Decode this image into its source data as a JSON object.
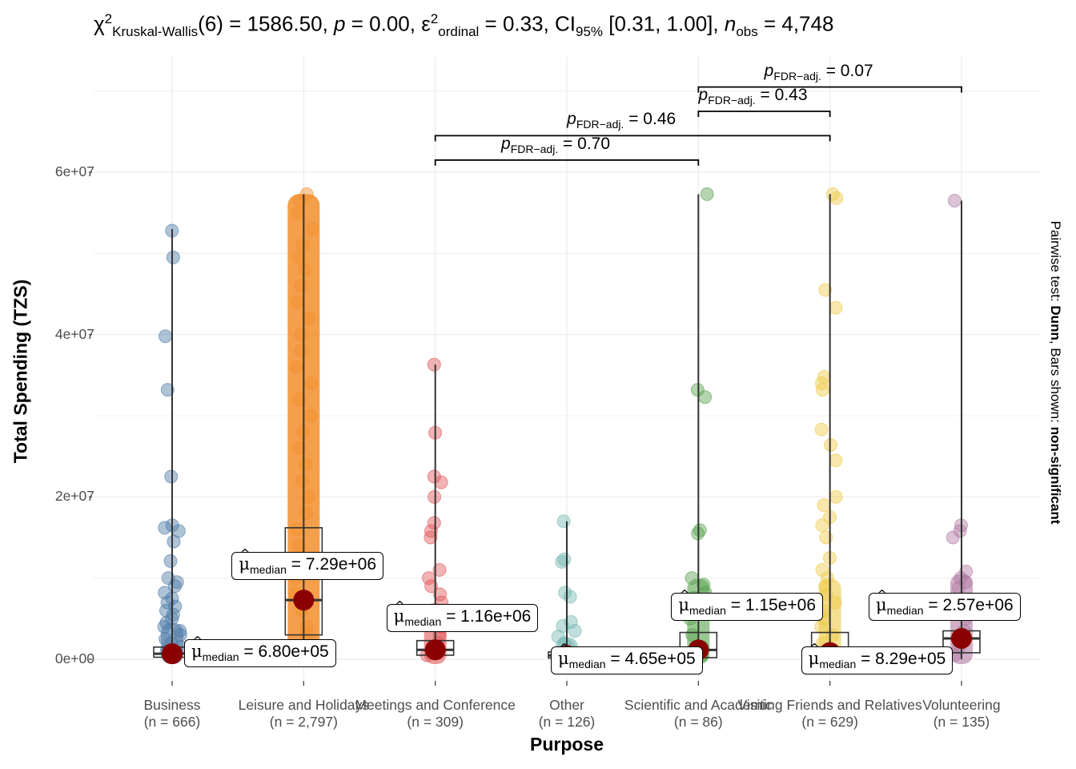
{
  "chart_data": {
    "type": "box-violin-scatter",
    "title": {
      "statistic_symbol": "χ",
      "statistic_sup": "2",
      "statistic_sub": "Kruskal-Wallis",
      "df": "(6)",
      "statistic_value": "1586.50",
      "p_symbol": "p",
      "p_value": "0.00",
      "effsize_symbol": "ε",
      "effsize_sup": "2",
      "effsize_sub": "ordinal",
      "effsize_value": "0.33",
      "ci_symbol": "CI",
      "ci_sub": "95%",
      "ci_value": "[0.31, 1.00]",
      "n_symbol": "n",
      "n_sub": "obs",
      "n_value": "4,748"
    },
    "xlabel": "Purpose",
    "ylabel": "Total Spending (TZS)",
    "caption": {
      "prefix": "Pairwise test: ",
      "test": "Dunn",
      "mid": ", Bars shown: ",
      "shown": "non-significant"
    },
    "ylim": [
      -1000000,
      71000000
    ],
    "yticks": [
      {
        "value": 0,
        "label": "0e+00"
      },
      {
        "value": 20000000,
        "label": "2e+07"
      },
      {
        "value": 40000000,
        "label": "4e+07"
      },
      {
        "value": 60000000,
        "label": "6e+07"
      }
    ],
    "grid": true,
    "categories": [
      {
        "name": "Business",
        "n_label": "(n = 666)",
        "color": "#4e79a7",
        "median": 680000,
        "median_label": "6.80e+05",
        "q1": 250000,
        "q3": 1500000,
        "whisker_max": 53000000,
        "points": [
          52800000,
          49500000,
          39800000,
          33200000,
          22500000,
          16500000,
          16200000,
          15800000,
          14500000,
          12100000,
          10000000,
          9500000,
          9000000,
          8200000,
          7500000,
          7000000,
          6500000,
          6000000,
          5500000,
          5000000,
          4500000,
          4000000,
          3500000,
          3000000,
          2500000,
          2000000,
          1500000,
          1000000,
          700000,
          400000
        ]
      },
      {
        "name": "Leisure and Holidays",
        "n_label": "(n = 2,797)",
        "color": "#f28e2b",
        "median": 7290000,
        "median_label": "7.29e+06",
        "q1": 3000000,
        "q3": 16200000,
        "whisker_max": 57300000,
        "points": [
          57300000,
          56500000,
          55000000,
          53000000,
          51000000,
          49500000,
          48000000,
          46000000,
          44000000,
          42000000,
          40000000,
          38000000,
          36000000,
          34000000,
          32000000,
          30000000,
          28000000,
          26000000,
          24000000,
          22000000,
          20000000,
          18000000,
          16000000,
          14000000,
          12000000,
          10000000,
          8000000,
          6000000,
          4000000,
          3000000,
          2000000,
          1000000
        ]
      },
      {
        "name": "Meetings and Conference",
        "n_label": "(n = 309)",
        "color": "#e15759",
        "median": 1160000,
        "median_label": "1.16e+06",
        "q1": 500000,
        "q3": 2300000,
        "whisker_max": 36300000,
        "points": [
          36300000,
          27900000,
          22500000,
          21800000,
          20000000,
          16800000,
          15800000,
          15000000,
          11000000,
          10000000,
          9000000,
          8000000,
          7000000,
          6000000,
          5000000,
          4000000,
          3000000,
          2000000,
          1000000,
          500000
        ]
      },
      {
        "name": "Other",
        "n_label": "(n = 126)",
        "color": "#76b7b2",
        "median": 465000,
        "median_label": "4.65e+05",
        "q1": 150000,
        "q3": 900000,
        "whisker_max": 17000000,
        "points": [
          17000000,
          12300000,
          12000000,
          8200000,
          7700000,
          4600000,
          4100000,
          3500000,
          2800000,
          2000000,
          1500000,
          800000,
          300000
        ]
      },
      {
        "name": "Scientific and Academic",
        "n_label": "(n = 86)",
        "color": "#59a14f",
        "median": 1150000,
        "median_label": "1.15e+06",
        "q1": 200000,
        "q3": 3300000,
        "whisker_max": 57300000,
        "points": [
          57300000,
          33200000,
          32300000,
          15900000,
          15500000,
          10000000,
          9200000,
          8200000,
          7600000,
          5000000,
          3000000,
          1500000,
          500000
        ]
      },
      {
        "name": "Visiting Friends and Relatives",
        "n_label": "(n = 629)",
        "color": "#edc948",
        "median": 829000,
        "median_label": "8.29e+05",
        "q1": 300000,
        "q3": 3300000,
        "whisker_max": 57300000,
        "points": [
          57300000,
          56800000,
          45500000,
          43300000,
          34800000,
          34000000,
          33200000,
          28300000,
          26400000,
          24500000,
          20000000,
          19000000,
          17500000,
          16500000,
          15000000,
          12500000,
          11000000,
          10000000,
          9000000,
          8000000,
          7000000,
          6000000,
          5000000,
          4000000,
          3000000,
          2000000,
          1000000
        ]
      },
      {
        "name": "Volunteering",
        "n_label": "(n = 135)",
        "color": "#b07aa1",
        "median": 2570000,
        "median_label": "2.57e+06",
        "q1": 800000,
        "q3": 3500000,
        "whisker_max": 56500000,
        "points": [
          56500000,
          16500000,
          15800000,
          15000000,
          10800000,
          10000000,
          9500000,
          8800000,
          7000000,
          5000000,
          3500000,
          2500000,
          1500000,
          500000
        ]
      }
    ],
    "pairwise_bars": [
      {
        "from": 2,
        "to": 4,
        "label_sub": "FDR−adj.",
        "p": "0.70",
        "y": 61500000
      },
      {
        "from": 2,
        "to": 5,
        "label_sub": "FDR−adj.",
        "p": "0.46",
        "y": 64500000
      },
      {
        "from": 4,
        "to": 5,
        "label_sub": "FDR−adj.",
        "p": "0.43",
        "y": 67500000
      },
      {
        "from": 4,
        "to": 6,
        "label_sub": "FDR−adj.",
        "p": "0.07",
        "y": 70500000
      }
    ],
    "median_marker_color": "#8b0000"
  }
}
